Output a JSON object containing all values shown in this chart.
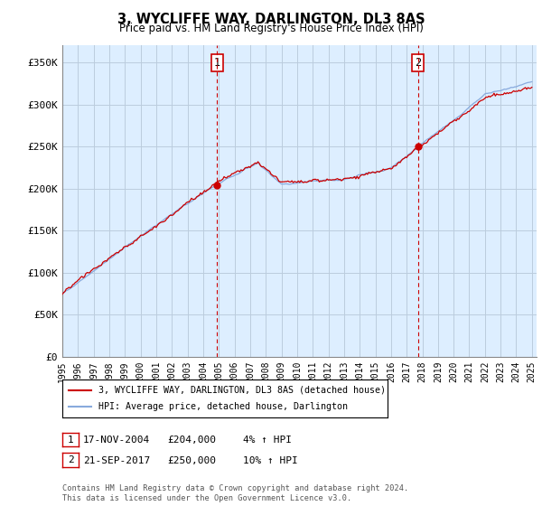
{
  "title": "3, WYCLIFFE WAY, DARLINGTON, DL3 8AS",
  "subtitle": "Price paid vs. HM Land Registry's House Price Index (HPI)",
  "ylabel_ticks": [
    "£0",
    "£50K",
    "£100K",
    "£150K",
    "£200K",
    "£250K",
    "£300K",
    "£350K"
  ],
  "ytick_values": [
    0,
    50000,
    100000,
    150000,
    200000,
    250000,
    300000,
    350000
  ],
  "ylim": [
    0,
    370000
  ],
  "x_start_year": 1995,
  "x_end_year": 2025,
  "sale1_date": 2004.88,
  "sale1_price": 204000,
  "sale1_label": "1",
  "sale1_text": "17-NOV-2004",
  "sale1_amount": "£204,000",
  "sale1_pct": "4% ↑ HPI",
  "sale2_date": 2017.72,
  "sale2_price": 250000,
  "sale2_label": "2",
  "sale2_text": "21-SEP-2017",
  "sale2_amount": "£250,000",
  "sale2_pct": "10% ↑ HPI",
  "red_color": "#cc0000",
  "blue_color": "#88aadd",
  "bg_color": "#ddeeff",
  "grid_color": "#bbccdd",
  "legend_line1": "3, WYCLIFFE WAY, DARLINGTON, DL3 8AS (detached house)",
  "legend_line2": "HPI: Average price, detached house, Darlington",
  "footnote": "Contains HM Land Registry data © Crown copyright and database right 2024.\nThis data is licensed under the Open Government Licence v3.0."
}
